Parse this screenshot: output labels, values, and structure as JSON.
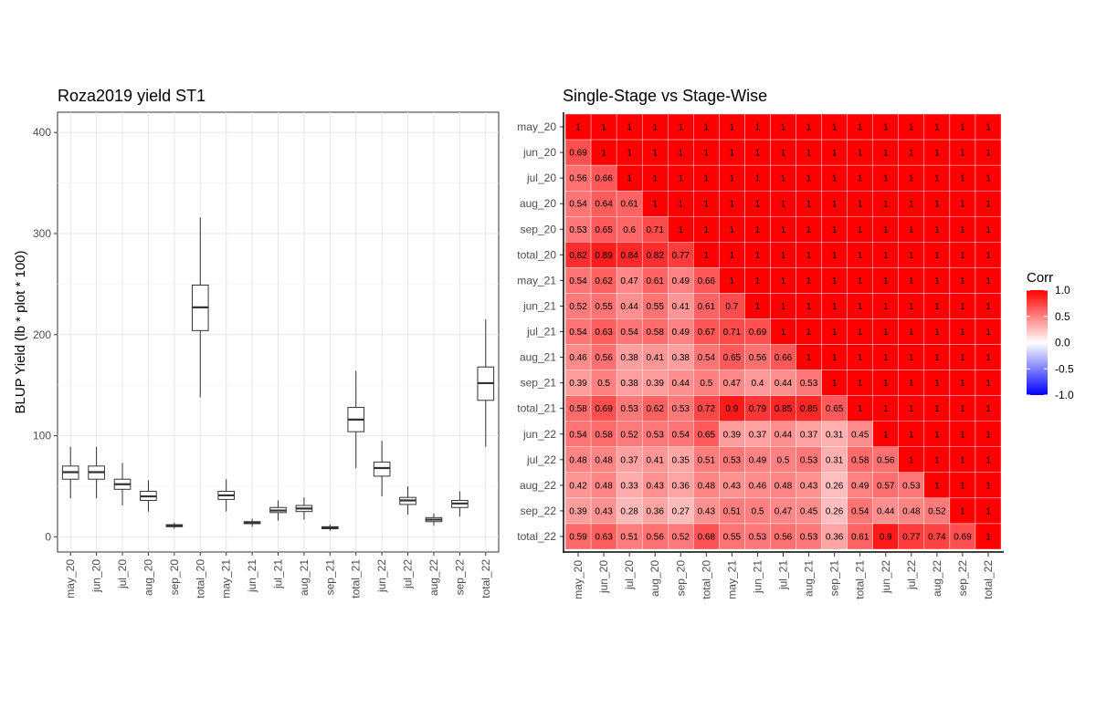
{
  "chart_data": [
    {
      "type": "box",
      "title": "Roza2019 yield ST1",
      "ylabel": "BLUP Yield (lb * plot * 100)",
      "xlabel": "",
      "ylim": [
        -15,
        420
      ],
      "yticks": [
        0,
        100,
        200,
        300,
        400
      ],
      "categories": [
        "may_20",
        "jun_20",
        "jul_20",
        "aug_20",
        "sep_20",
        "total_20",
        "may_21",
        "jun_21",
        "jul_21",
        "aug_21",
        "sep_21",
        "total_21",
        "jun_22",
        "jul_22",
        "aug_22",
        "sep_22",
        "total_22"
      ],
      "boxes": [
        {
          "min": 38,
          "q1": 57,
          "median": 64,
          "q3": 70,
          "max": 89
        },
        {
          "min": 38,
          "q1": 57,
          "median": 64,
          "q3": 70,
          "max": 89
        },
        {
          "min": 31,
          "q1": 47,
          "median": 52,
          "q3": 57,
          "max": 73
        },
        {
          "min": 25,
          "q1": 36,
          "median": 40,
          "q3": 45,
          "max": 56
        },
        {
          "min": 8,
          "q1": 10,
          "median": 11,
          "q3": 12,
          "max": 14
        },
        {
          "min": 138,
          "q1": 204,
          "median": 227,
          "q3": 249,
          "max": 316
        },
        {
          "min": 25,
          "q1": 37,
          "median": 41,
          "q3": 45,
          "max": 57
        },
        {
          "min": 10,
          "q1": 13,
          "median": 14,
          "q3": 15,
          "max": 18
        },
        {
          "min": 16,
          "q1": 24,
          "median": 26,
          "q3": 29,
          "max": 36
        },
        {
          "min": 17,
          "q1": 25,
          "median": 28,
          "q3": 31,
          "max": 39
        },
        {
          "min": 6,
          "q1": 8,
          "median": 9,
          "q3": 10,
          "max": 12
        },
        {
          "min": 68,
          "q1": 104,
          "median": 116,
          "q3": 128,
          "max": 164
        },
        {
          "min": 40,
          "q1": 60,
          "median": 68,
          "q3": 74,
          "max": 95
        },
        {
          "min": 22,
          "q1": 32,
          "median": 36,
          "q3": 39,
          "max": 50
        },
        {
          "min": 11,
          "q1": 15,
          "median": 17,
          "q3": 19,
          "max": 23
        },
        {
          "min": 20,
          "q1": 29,
          "median": 33,
          "q3": 36,
          "max": 45
        },
        {
          "min": 89,
          "q1": 135,
          "median": 152,
          "q3": 168,
          "max": 215
        }
      ]
    },
    {
      "type": "heatmap",
      "title": "Single-Stage vs Stage-Wise",
      "labels": [
        "may_20",
        "jun_20",
        "jul_20",
        "aug_20",
        "sep_20",
        "total_20",
        "may_21",
        "jun_21",
        "jul_21",
        "aug_21",
        "sep_21",
        "total_21",
        "jun_22",
        "jul_22",
        "aug_22",
        "sep_22",
        "total_22"
      ],
      "lower_triangle": [
        [],
        [
          0.69
        ],
        [
          0.56,
          0.66
        ],
        [
          0.54,
          0.64,
          0.61
        ],
        [
          0.53,
          0.65,
          0.6,
          0.71
        ],
        [
          0.82,
          0.89,
          0.84,
          0.82,
          0.77
        ],
        [
          0.54,
          0.62,
          0.47,
          0.61,
          0.49,
          0.66
        ],
        [
          0.52,
          0.55,
          0.44,
          0.55,
          0.41,
          0.61,
          0.7
        ],
        [
          0.54,
          0.63,
          0.54,
          0.58,
          0.49,
          0.67,
          0.71,
          0.69
        ],
        [
          0.46,
          0.56,
          0.38,
          0.41,
          0.38,
          0.54,
          0.65,
          0.56,
          0.66
        ],
        [
          0.39,
          0.5,
          0.38,
          0.39,
          0.44,
          0.5,
          0.47,
          0.4,
          0.44,
          0.53
        ],
        [
          0.58,
          0.69,
          0.53,
          0.62,
          0.53,
          0.72,
          0.9,
          0.79,
          0.85,
          0.85,
          0.65
        ],
        [
          0.54,
          0.58,
          0.52,
          0.53,
          0.54,
          0.65,
          0.39,
          0.37,
          0.44,
          0.37,
          0.31,
          0.45
        ],
        [
          0.48,
          0.48,
          0.37,
          0.41,
          0.35,
          0.51,
          0.53,
          0.49,
          0.5,
          0.53,
          0.31,
          0.58,
          0.56
        ],
        [
          0.42,
          0.48,
          0.33,
          0.43,
          0.36,
          0.48,
          0.43,
          0.46,
          0.48,
          0.43,
          0.26,
          0.49,
          0.57,
          0.53
        ],
        [
          0.39,
          0.43,
          0.28,
          0.36,
          0.27,
          0.43,
          0.51,
          0.5,
          0.47,
          0.45,
          0.26,
          0.54,
          0.44,
          0.48,
          0.52
        ],
        [
          0.59,
          0.63,
          0.51,
          0.56,
          0.52,
          0.68,
          0.55,
          0.53,
          0.56,
          0.53,
          0.36,
          0.61,
          0.9,
          0.77,
          0.74,
          0.69
        ]
      ],
      "upper_and_diagonal_value": 1,
      "legend": {
        "title": "Corr",
        "ticks": [
          1.0,
          0.5,
          0.0,
          -0.5,
          -1.0
        ],
        "tick_labels": [
          "1.0",
          "0.5",
          "0.0",
          "-0.5",
          "-1.0"
        ],
        "low_color": "#0000ff",
        "mid_color": "#ffffff",
        "high_color": "#ff0000",
        "placement": "right"
      }
    }
  ]
}
